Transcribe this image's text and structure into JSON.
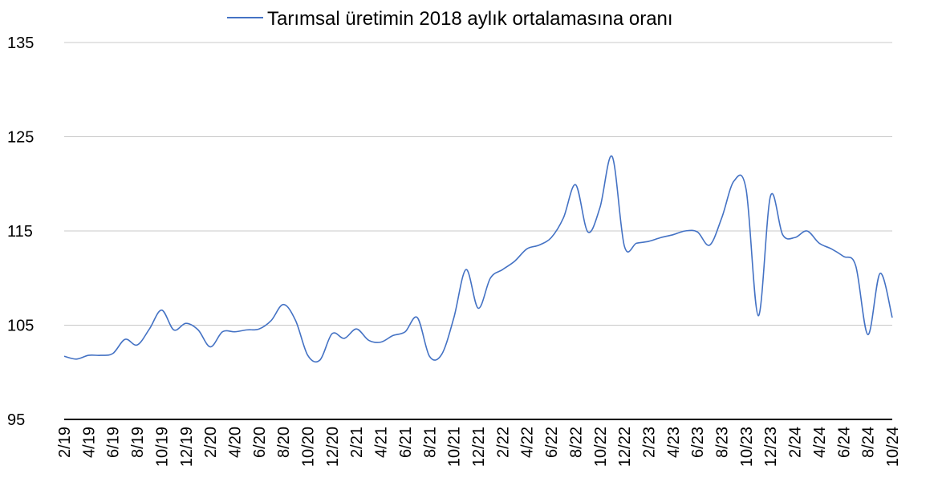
{
  "chart_data": {
    "type": "line",
    "title": "",
    "xlabel": "",
    "ylabel": "",
    "ylim": [
      95,
      135
    ],
    "yticks": [
      95,
      105,
      115,
      125,
      135
    ],
    "grid": true,
    "legend_position": "top",
    "x": [
      "2/19",
      "3/19",
      "4/19",
      "5/19",
      "6/19",
      "7/19",
      "8/19",
      "9/19",
      "10/19",
      "11/19",
      "12/19",
      "1/20",
      "2/20",
      "3/20",
      "4/20",
      "5/20",
      "6/20",
      "7/20",
      "8/20",
      "9/20",
      "10/20",
      "11/20",
      "12/20",
      "1/21",
      "2/21",
      "3/21",
      "4/21",
      "5/21",
      "6/21",
      "7/21",
      "8/21",
      "9/21",
      "10/21",
      "11/21",
      "12/21",
      "1/22",
      "2/22",
      "3/22",
      "4/22",
      "5/22",
      "6/22",
      "7/22",
      "8/22",
      "9/22",
      "10/22",
      "11/22",
      "12/22",
      "1/23",
      "2/23",
      "3/23",
      "4/23",
      "5/23",
      "6/23",
      "7/23",
      "8/23",
      "9/23",
      "10/23",
      "11/23",
      "12/23",
      "1/24",
      "2/24",
      "3/24",
      "4/24",
      "5/24",
      "6/24",
      "7/24",
      "8/24",
      "9/24",
      "10/24"
    ],
    "x_tick_labels": [
      "2/19",
      "4/19",
      "6/19",
      "8/19",
      "10/19",
      "12/19",
      "2/20",
      "4/20",
      "6/20",
      "8/20",
      "10/20",
      "12/20",
      "2/21",
      "4/21",
      "6/21",
      "8/21",
      "10/21",
      "12/21",
      "2/22",
      "4/22",
      "6/22",
      "8/22",
      "10/22",
      "12/22",
      "2/23",
      "4/23",
      "6/23",
      "8/23",
      "10/23",
      "12/23",
      "2/24",
      "4/24",
      "6/24",
      "8/24",
      "10/24"
    ],
    "series": [
      {
        "name": "Tarımsal üretimin 2018 aylık ortalamasına oranı",
        "color": "#4472C4",
        "values": [
          101.7,
          101.4,
          101.8,
          101.8,
          102.0,
          103.5,
          102.9,
          104.6,
          106.6,
          104.5,
          105.2,
          104.5,
          102.7,
          104.3,
          104.3,
          104.5,
          104.6,
          105.5,
          107.2,
          105.5,
          101.8,
          101.3,
          104.1,
          103.6,
          104.6,
          103.4,
          103.2,
          103.9,
          104.3,
          105.8,
          101.7,
          101.9,
          105.8,
          110.9,
          106.8,
          110.0,
          110.9,
          111.8,
          113.1,
          113.5,
          114.3,
          116.4,
          119.9,
          114.9,
          117.5,
          122.9,
          113.4,
          113.7,
          113.9,
          114.3,
          114.6,
          115.0,
          114.9,
          113.5,
          116.4,
          120.3,
          119.4,
          106.0,
          118.7,
          114.6,
          114.3,
          115.0,
          113.7,
          113.1,
          112.3,
          111.3,
          104.0,
          110.5,
          105.8
        ]
      }
    ]
  }
}
